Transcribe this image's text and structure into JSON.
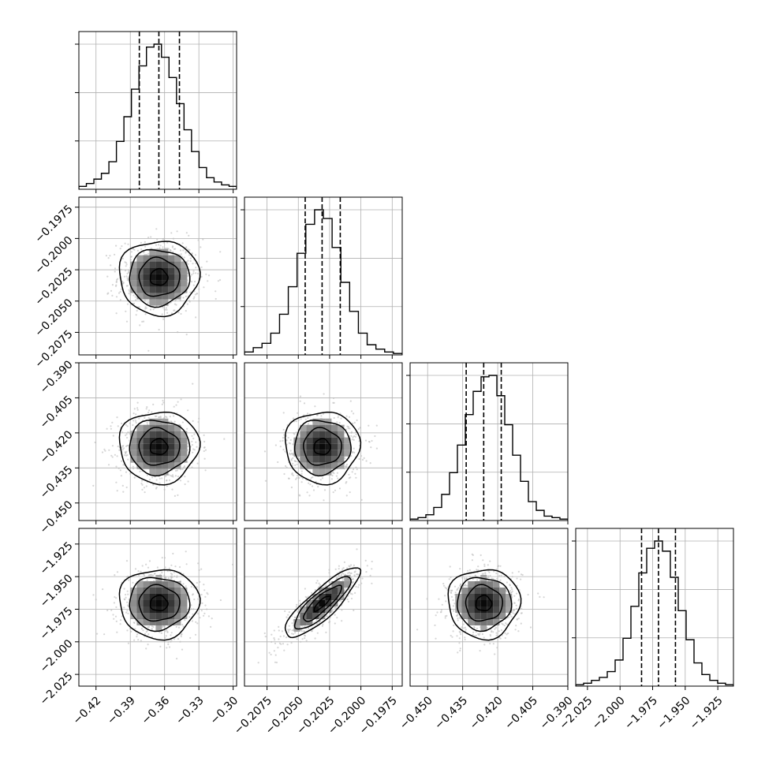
{
  "chart_data": {
    "type": "corner",
    "parameters": 4,
    "grid": true,
    "quantile_lines": "dashed",
    "ticks": [
      {
        "values": [
          -0.42,
          -0.39,
          -0.36,
          -0.33,
          -0.3
        ],
        "labels": [
          "−0.42",
          "−0.39",
          "−0.36",
          "−0.33",
          "−0.30"
        ]
      },
      {
        "values": [
          -0.2075,
          -0.205,
          -0.2025,
          -0.2,
          -0.1975
        ],
        "labels": [
          "−0.2075",
          "−0.2050",
          "−0.2025",
          "−0.2000",
          "−0.1975"
        ]
      },
      {
        "values": [
          -0.45,
          -0.435,
          -0.42,
          -0.405,
          -0.39
        ],
        "labels": [
          "−0.450",
          "−0.435",
          "−0.420",
          "−0.405",
          "−0.390"
        ]
      },
      {
        "values": [
          -2.025,
          -2.0,
          -1.975,
          -1.95,
          -1.925
        ],
        "labels": [
          "−2.025",
          "−2.000",
          "−1.975",
          "−1.950",
          "−1.925"
        ]
      }
    ],
    "ranges": [
      [
        -0.435,
        -0.297
      ],
      [
        -0.2093,
        -0.1967
      ],
      [
        -0.4575,
        -0.39
      ],
      [
        -2.034,
        -1.913
      ]
    ],
    "quantiles": [
      [
        -0.3821,
        -0.365,
        -0.347
      ],
      [
        -0.20445,
        -0.2031,
        -0.20165
      ],
      [
        -0.4335,
        -0.426,
        -0.4185
      ],
      [
        -1.9835,
        -1.9705,
        -1.9575
      ]
    ],
    "histograms": [
      [
        0.02,
        0.04,
        0.07,
        0.11,
        0.19,
        0.33,
        0.5,
        0.69,
        0.85,
        0.98,
        1.0,
        0.91,
        0.77,
        0.59,
        0.41,
        0.26,
        0.15,
        0.08,
        0.05,
        0.03,
        0.02
      ],
      [
        0.02,
        0.05,
        0.08,
        0.15,
        0.28,
        0.47,
        0.7,
        0.9,
        1.0,
        0.94,
        0.74,
        0.5,
        0.3,
        0.15,
        0.07,
        0.04,
        0.02,
        0.01
      ],
      [
        0.01,
        0.02,
        0.04,
        0.09,
        0.18,
        0.33,
        0.52,
        0.73,
        0.89,
        0.99,
        1.0,
        0.86,
        0.66,
        0.45,
        0.27,
        0.13,
        0.07,
        0.03,
        0.02,
        0.01
      ],
      [
        0.01,
        0.02,
        0.04,
        0.06,
        0.1,
        0.18,
        0.33,
        0.55,
        0.78,
        0.95,
        1.0,
        0.93,
        0.75,
        0.52,
        0.32,
        0.16,
        0.08,
        0.04,
        0.02,
        0.01
      ]
    ],
    "joint": [
      {
        "x": 0,
        "y": 1,
        "cx": -0.365,
        "cy": -0.2031,
        "correlation": 0.0
      },
      {
        "x": 0,
        "y": 2,
        "cx": -0.365,
        "cy": -0.426,
        "correlation": 0.0
      },
      {
        "x": 1,
        "y": 2,
        "cx": -0.2031,
        "cy": -0.426,
        "correlation": 0.0
      },
      {
        "x": 0,
        "y": 3,
        "cx": -0.365,
        "cy": -1.9705,
        "correlation": 0.0
      },
      {
        "x": 1,
        "y": 3,
        "cx": -0.2031,
        "cy": -1.9705,
        "correlation": 0.85
      },
      {
        "x": 2,
        "y": 3,
        "cx": -0.426,
        "cy": -1.9705,
        "correlation": 0.0
      }
    ],
    "sigma": [
      0.017,
      0.00145,
      0.0075,
      0.013
    ]
  }
}
